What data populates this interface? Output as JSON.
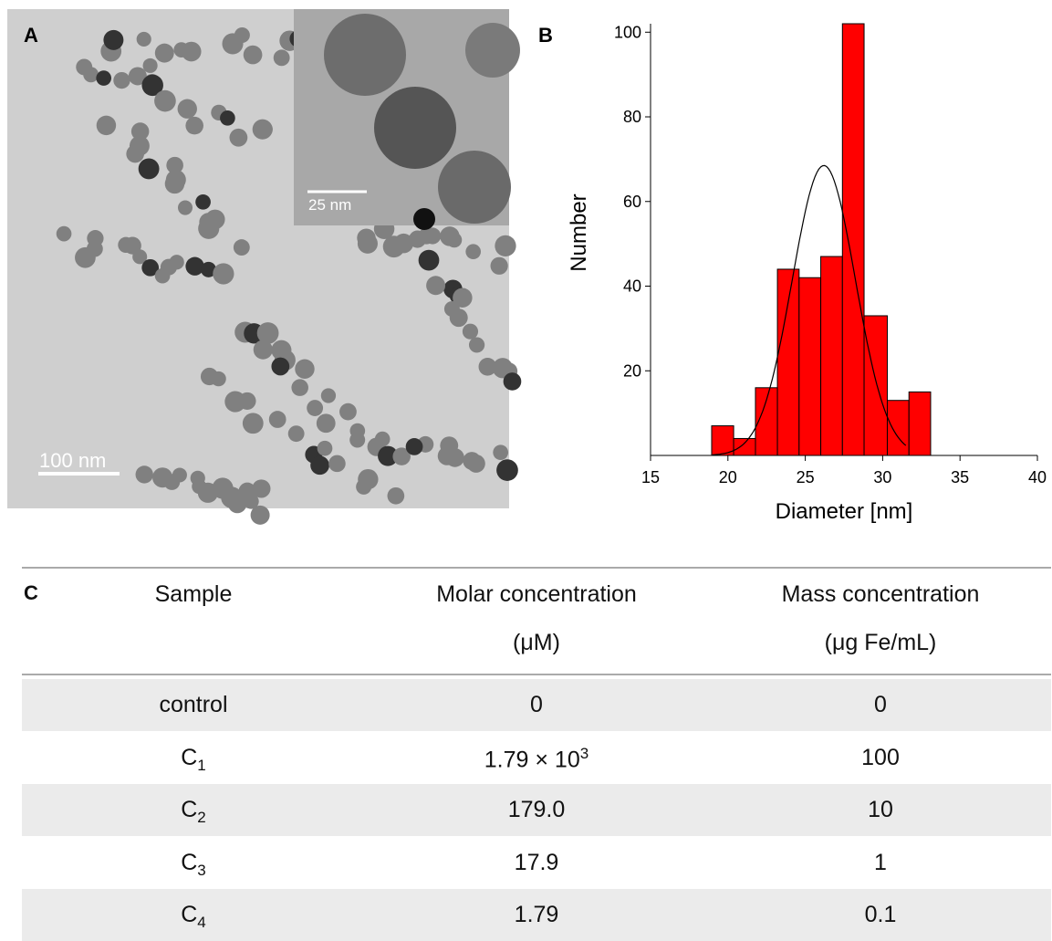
{
  "panel_labels": [
    "A",
    "B",
    "C"
  ],
  "image": {
    "scale_bar": "100 nm",
    "inset_scale_bar": "25 nm"
  },
  "chart_data": {
    "type": "histogram",
    "x_label": "Diameter [nm]",
    "y_label": "Number",
    "bins": [
      18.95,
      20.37,
      21.78,
      23.2,
      24.6,
      26.0,
      27.4,
      28.8,
      30.3,
      31.7,
      33.1
    ],
    "values": [
      7,
      4,
      16,
      44,
      42,
      47,
      102,
      33,
      13,
      15
    ],
    "color": "#ff0000",
    "xlim": [
      15,
      40
    ],
    "xticks": [
      15,
      20,
      25,
      30,
      35,
      40
    ],
    "ylim": [
      0,
      102
    ],
    "yticks": [
      20,
      40,
      60,
      80,
      100
    ],
    "fit": {
      "amplitude": 68.5,
      "mean": 26.2,
      "sigma": 2.04,
      "range": [
        19,
        31.5
      ],
      "color": "#000000"
    }
  },
  "table": {
    "header": [
      [
        "Sample"
      ],
      [
        "Molar concentration",
        "(μM)"
      ],
      [
        "Mass concentration",
        "(μg Fe/mL)"
      ]
    ],
    "rows": [
      [
        {
          "text": "control"
        },
        {
          "text": "0"
        },
        {
          "text": "0"
        }
      ],
      [
        {
          "text": "C",
          "sub": "1"
        },
        {
          "text": "1.79 × 10",
          "sup": "3"
        },
        {
          "text": "100"
        }
      ],
      [
        {
          "text": "C",
          "sub": "2"
        },
        {
          "text": "179.0"
        },
        {
          "text": "10"
        }
      ],
      [
        {
          "text": "C",
          "sub": "3"
        },
        {
          "text": "17.9"
        },
        {
          "text": "1"
        }
      ],
      [
        {
          "text": "C",
          "sub": "4"
        },
        {
          "text": "1.79"
        },
        {
          "text": "0.1"
        }
      ]
    ]
  }
}
